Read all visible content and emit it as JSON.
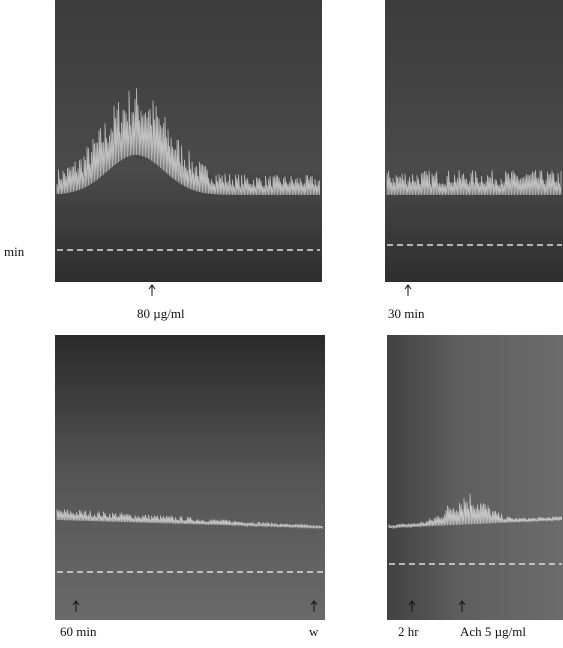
{
  "figure": {
    "side_label": "min",
    "panels": [
      {
        "markers": [
          "80 µg/ml"
        ]
      },
      {
        "markers": [
          "30 min"
        ]
      },
      {
        "markers": [
          "60 min",
          "w"
        ]
      },
      {
        "markers": [
          "2 hr",
          "Ach 5 µg/ml"
        ]
      }
    ]
  }
}
